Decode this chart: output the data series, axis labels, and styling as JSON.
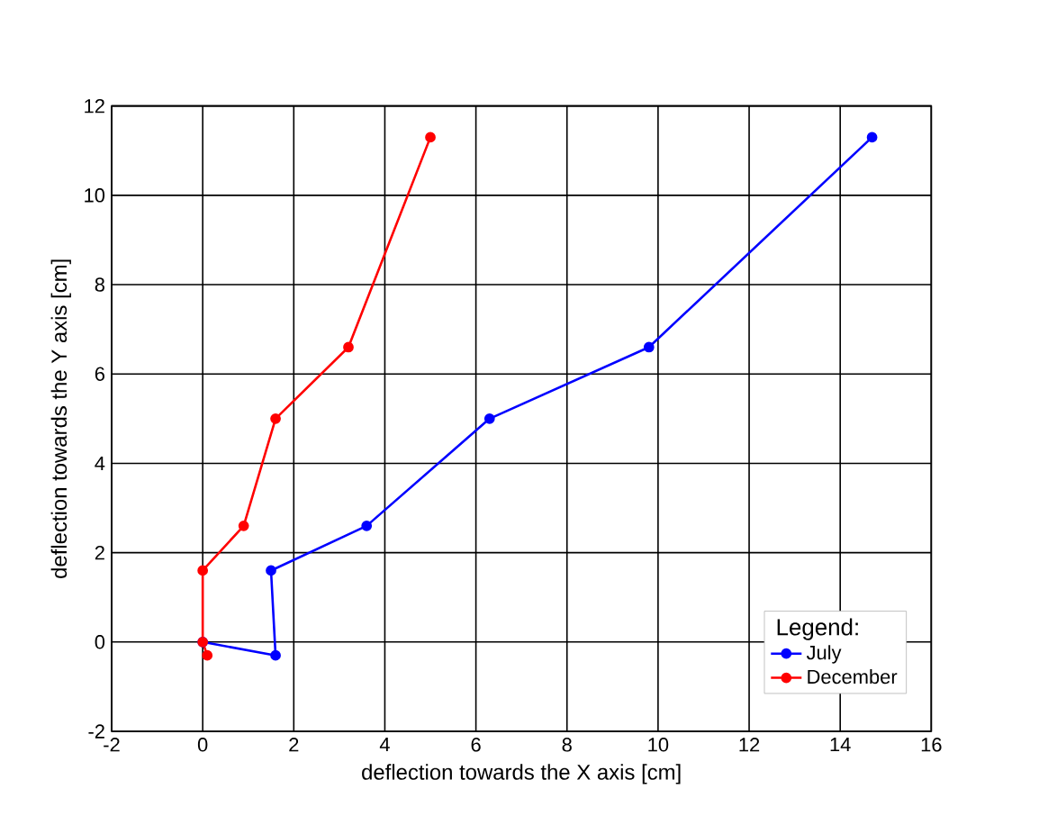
{
  "chart_data": {
    "type": "line",
    "xlabel": "deflection towards the X axis [cm]",
    "ylabel": "deflection towards the Y axis [cm]",
    "legend_title": "Legend:",
    "legend": "bottom right",
    "grid": true,
    "marker": "circle",
    "line_style": "solid",
    "xlim": [
      -2,
      16
    ],
    "ylim": [
      -2,
      12
    ],
    "xticks": [
      -2,
      0,
      2,
      4,
      6,
      8,
      10,
      12,
      14,
      16
    ],
    "yticks": [
      -2,
      0,
      2,
      4,
      6,
      8,
      10,
      12
    ],
    "series": [
      {
        "name": "July",
        "color": "#0000ff",
        "x": [
          14.7,
          9.8,
          6.3,
          3.6,
          1.5,
          1.6,
          0
        ],
        "values": [
          11.3,
          6.6,
          5.0,
          2.6,
          1.6,
          -0.3,
          0
        ]
      },
      {
        "name": "December",
        "color": "#ff0000",
        "x": [
          5.0,
          3.2,
          1.6,
          0.9,
          0,
          0,
          0.1
        ],
        "values": [
          11.3,
          6.6,
          5.0,
          2.6,
          1.6,
          0,
          -0.3
        ]
      }
    ]
  }
}
